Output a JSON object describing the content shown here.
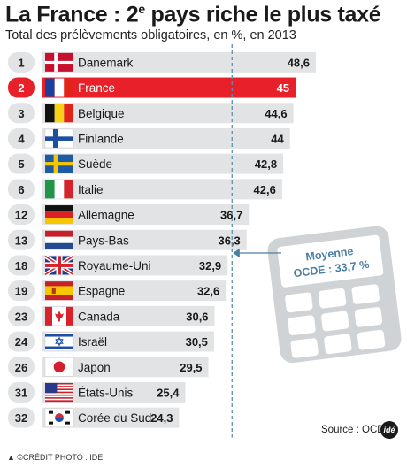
{
  "header": {
    "title": "La France : 2",
    "title_sup": "e",
    "title_rest": " pays riche le plus taxé",
    "subtitle": "Total des prélèvements obligatoires, en %, en 2013"
  },
  "chart_data": {
    "type": "bar",
    "orientation": "horizontal",
    "unit": "%",
    "highlight": "France",
    "reference_value": 33.7,
    "reference_label_1": "Moyenne",
    "reference_label_2": "OCDE : 33,7 %",
    "rows": [
      {
        "rank": "1",
        "country": "Danemark",
        "value": 48.6,
        "label": "48,6",
        "flag": "denmark-flag"
      },
      {
        "rank": "2",
        "country": "France",
        "value": 45.0,
        "label": "45",
        "flag": "france-flag"
      },
      {
        "rank": "3",
        "country": "Belgique",
        "value": 44.6,
        "label": "44,6",
        "flag": "belgium-flag"
      },
      {
        "rank": "4",
        "country": "Finlande",
        "value": 44.0,
        "label": "44",
        "flag": "finland-flag"
      },
      {
        "rank": "5",
        "country": "Suède",
        "value": 42.8,
        "label": "42,8",
        "flag": "sweden-flag"
      },
      {
        "rank": "6",
        "country": "Italie",
        "value": 42.6,
        "label": "42,6",
        "flag": "italy-flag"
      },
      {
        "rank": "12",
        "country": "Allemagne",
        "value": 36.7,
        "label": "36,7",
        "flag": "germany-flag"
      },
      {
        "rank": "13",
        "country": "Pays-Bas",
        "value": 36.3,
        "label": "36,3",
        "flag": "netherlands-flag"
      },
      {
        "rank": "18",
        "country": "Royaume-Uni",
        "value": 32.9,
        "label": "32,9",
        "flag": "uk-flag"
      },
      {
        "rank": "19",
        "country": "Espagne",
        "value": 32.6,
        "label": "32,6",
        "flag": "spain-flag"
      },
      {
        "rank": "23",
        "country": "Canada",
        "value": 30.6,
        "label": "30,6",
        "flag": "canada-flag"
      },
      {
        "rank": "24",
        "country": "Israël",
        "value": 30.5,
        "label": "30,5",
        "flag": "israel-flag"
      },
      {
        "rank": "26",
        "country": "Japon",
        "value": 29.5,
        "label": "29,5",
        "flag": "japan-flag"
      },
      {
        "rank": "31",
        "country": "États-Unis",
        "value": 25.4,
        "label": "25,4",
        "flag": "usa-flag"
      },
      {
        "rank": "32",
        "country": "Corée du Sud",
        "value": 24.3,
        "label": "24,3",
        "flag": "south-korea-flag"
      }
    ]
  },
  "footer": {
    "source": "Source : OCDE",
    "logo": "idé",
    "credit": "©CRÉDIT PHOTO : IDE"
  },
  "colors": {
    "bar": "#e2e3e5",
    "highlight": "#e8202a",
    "rank_badge": "#e2e3e5",
    "dashed_line": "#5b8fb0",
    "calculator": "#d0d3d6"
  }
}
